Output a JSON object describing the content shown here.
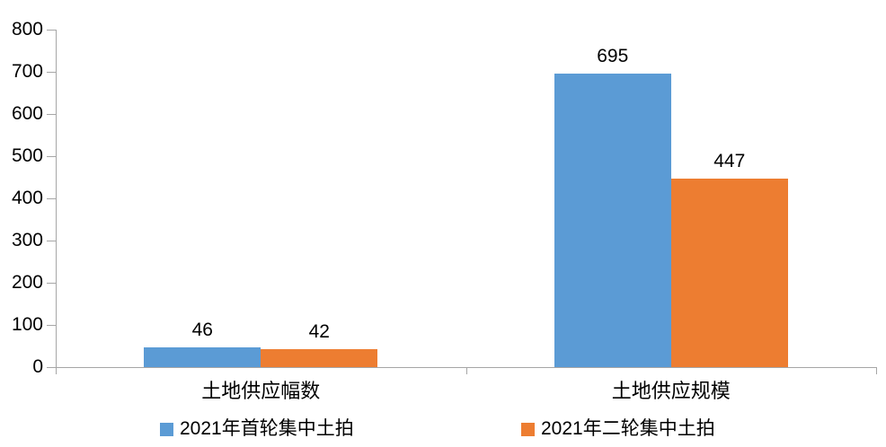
{
  "chart_data": {
    "type": "bar",
    "categories": [
      "土地供应幅数",
      "土地供应规模"
    ],
    "series": [
      {
        "name": "2021年首轮集中土拍",
        "color": "#5B9BD5",
        "values": [
          46,
          695
        ]
      },
      {
        "name": "2021年二轮集中土拍",
        "color": "#ED7D31",
        "values": [
          42,
          447
        ]
      }
    ],
    "ylim": [
      0,
      800
    ],
    "yticks": [
      0,
      100,
      200,
      300,
      400,
      500,
      600,
      700,
      800
    ],
    "grid": false,
    "legend_position": "bottom",
    "axis_color": "#A6A6A6",
    "text_color": "#000000",
    "background_color": "#FFFFFF"
  }
}
